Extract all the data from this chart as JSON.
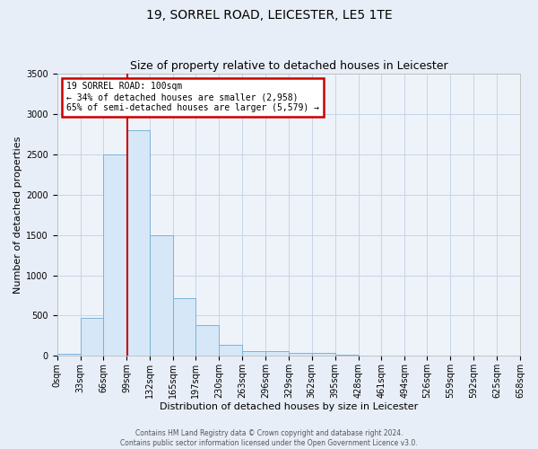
{
  "title": "19, SORREL ROAD, LEICESTER, LE5 1TE",
  "subtitle": "Size of property relative to detached houses in Leicester",
  "xlabel": "Distribution of detached houses by size in Leicester",
  "ylabel": "Number of detached properties",
  "bar_values": [
    30,
    470,
    2500,
    2800,
    1500,
    720,
    380,
    140,
    55,
    55,
    40,
    35,
    20,
    0,
    0,
    0,
    0,
    0,
    0,
    0
  ],
  "bin_edges": [
    0,
    33,
    66,
    99,
    132,
    165,
    197,
    230,
    263,
    296,
    329,
    362,
    395,
    428,
    461,
    494,
    526,
    559,
    592,
    625,
    658
  ],
  "tick_labels": [
    "0sqm",
    "33sqm",
    "66sqm",
    "99sqm",
    "132sqm",
    "165sqm",
    "197sqm",
    "230sqm",
    "263sqm",
    "296sqm",
    "329sqm",
    "362sqm",
    "395sqm",
    "428sqm",
    "461sqm",
    "494sqm",
    "526sqm",
    "559sqm",
    "592sqm",
    "625sqm",
    "658sqm"
  ],
  "ylim": [
    0,
    3500
  ],
  "bar_facecolor": "#d6e8f7",
  "bar_edgecolor": "#7ab3d9",
  "grid_color": "#c8d4e8",
  "background_color": "#e8eef8",
  "plot_bg_color": "#eef3fa",
  "property_line_x": 100,
  "property_line_color": "#cc0000",
  "annotation_text": "19 SORREL ROAD: 100sqm\n← 34% of detached houses are smaller (2,958)\n65% of semi-detached houses are larger (5,579) →",
  "annotation_box_color": "#cc0000",
  "footer_line1": "Contains HM Land Registry data © Crown copyright and database right 2024.",
  "footer_line2": "Contains public sector information licensed under the Open Government Licence v3.0.",
  "yticks": [
    0,
    500,
    1000,
    1500,
    2000,
    2500,
    3000,
    3500
  ],
  "title_fontsize": 10,
  "subtitle_fontsize": 9,
  "ylabel_fontsize": 8,
  "xlabel_fontsize": 8,
  "tick_fontsize": 7,
  "annot_fontsize": 7,
  "footer_fontsize": 5.5
}
